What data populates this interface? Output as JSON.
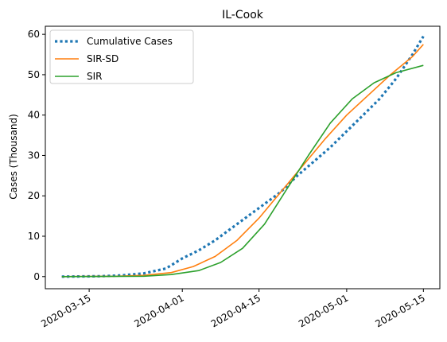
{
  "chart_data": {
    "type": "line",
    "title": "IL-Cook",
    "xlabel": "",
    "ylabel": "Cases (Thousand)",
    "xlim": [
      "2020-03-07",
      "2020-05-18"
    ],
    "ylim": [
      -3,
      62
    ],
    "x_ticks": [
      "2020-03-15",
      "2020-04-01",
      "2020-04-15",
      "2020-05-01",
      "2020-05-15"
    ],
    "y_ticks": [
      0,
      10,
      20,
      30,
      40,
      50,
      60
    ],
    "grid": false,
    "legend_position": "top-left",
    "series": [
      {
        "name": "Cumulative Cases",
        "style": "dotted",
        "color": "#1f77b4",
        "points": [
          [
            "2020-03-10",
            0.0
          ],
          [
            "2020-03-17",
            0.1
          ],
          [
            "2020-03-21",
            0.3
          ],
          [
            "2020-03-25",
            0.8
          ],
          [
            "2020-03-29",
            2.0
          ],
          [
            "2020-04-01",
            4.5
          ],
          [
            "2020-04-04",
            6.5
          ],
          [
            "2020-04-07",
            9.0
          ],
          [
            "2020-04-10",
            12.0
          ],
          [
            "2020-04-13",
            15.0
          ],
          [
            "2020-04-16",
            18.0
          ],
          [
            "2020-04-19",
            21.0
          ],
          [
            "2020-04-22",
            25.0
          ],
          [
            "2020-04-25",
            28.5
          ],
          [
            "2020-04-28",
            32.0
          ],
          [
            "2020-05-01",
            36.0
          ],
          [
            "2020-05-04",
            40.0
          ],
          [
            "2020-05-07",
            44.0
          ],
          [
            "2020-05-10",
            49.0
          ],
          [
            "2020-05-13",
            55.0
          ],
          [
            "2020-05-15",
            59.5
          ]
        ]
      },
      {
        "name": "SIR-SD",
        "style": "solid",
        "color": "#ff7f0e",
        "points": [
          [
            "2020-03-10",
            0.0
          ],
          [
            "2020-03-20",
            0.1
          ],
          [
            "2020-03-25",
            0.3
          ],
          [
            "2020-03-30",
            1.0
          ],
          [
            "2020-04-03",
            2.5
          ],
          [
            "2020-04-07",
            5.0
          ],
          [
            "2020-04-11",
            9.0
          ],
          [
            "2020-04-15",
            14.5
          ],
          [
            "2020-04-19",
            21.0
          ],
          [
            "2020-04-23",
            27.5
          ],
          [
            "2020-04-27",
            34.0
          ],
          [
            "2020-05-01",
            40.0
          ],
          [
            "2020-05-05",
            45.0
          ],
          [
            "2020-05-09",
            50.0
          ],
          [
            "2020-05-13",
            54.5
          ],
          [
            "2020-05-15",
            57.5
          ]
        ]
      },
      {
        "name": "SIR",
        "style": "solid",
        "color": "#2ca02c",
        "points": [
          [
            "2020-03-10",
            0.0
          ],
          [
            "2020-03-25",
            0.1
          ],
          [
            "2020-03-30",
            0.5
          ],
          [
            "2020-04-04",
            1.5
          ],
          [
            "2020-04-08",
            3.5
          ],
          [
            "2020-04-12",
            7.0
          ],
          [
            "2020-04-16",
            13.0
          ],
          [
            "2020-04-20",
            21.5
          ],
          [
            "2020-04-24",
            30.0
          ],
          [
            "2020-04-28",
            38.0
          ],
          [
            "2020-05-02",
            44.0
          ],
          [
            "2020-05-06",
            48.0
          ],
          [
            "2020-05-10",
            50.5
          ],
          [
            "2020-05-15",
            52.3
          ]
        ]
      }
    ]
  }
}
